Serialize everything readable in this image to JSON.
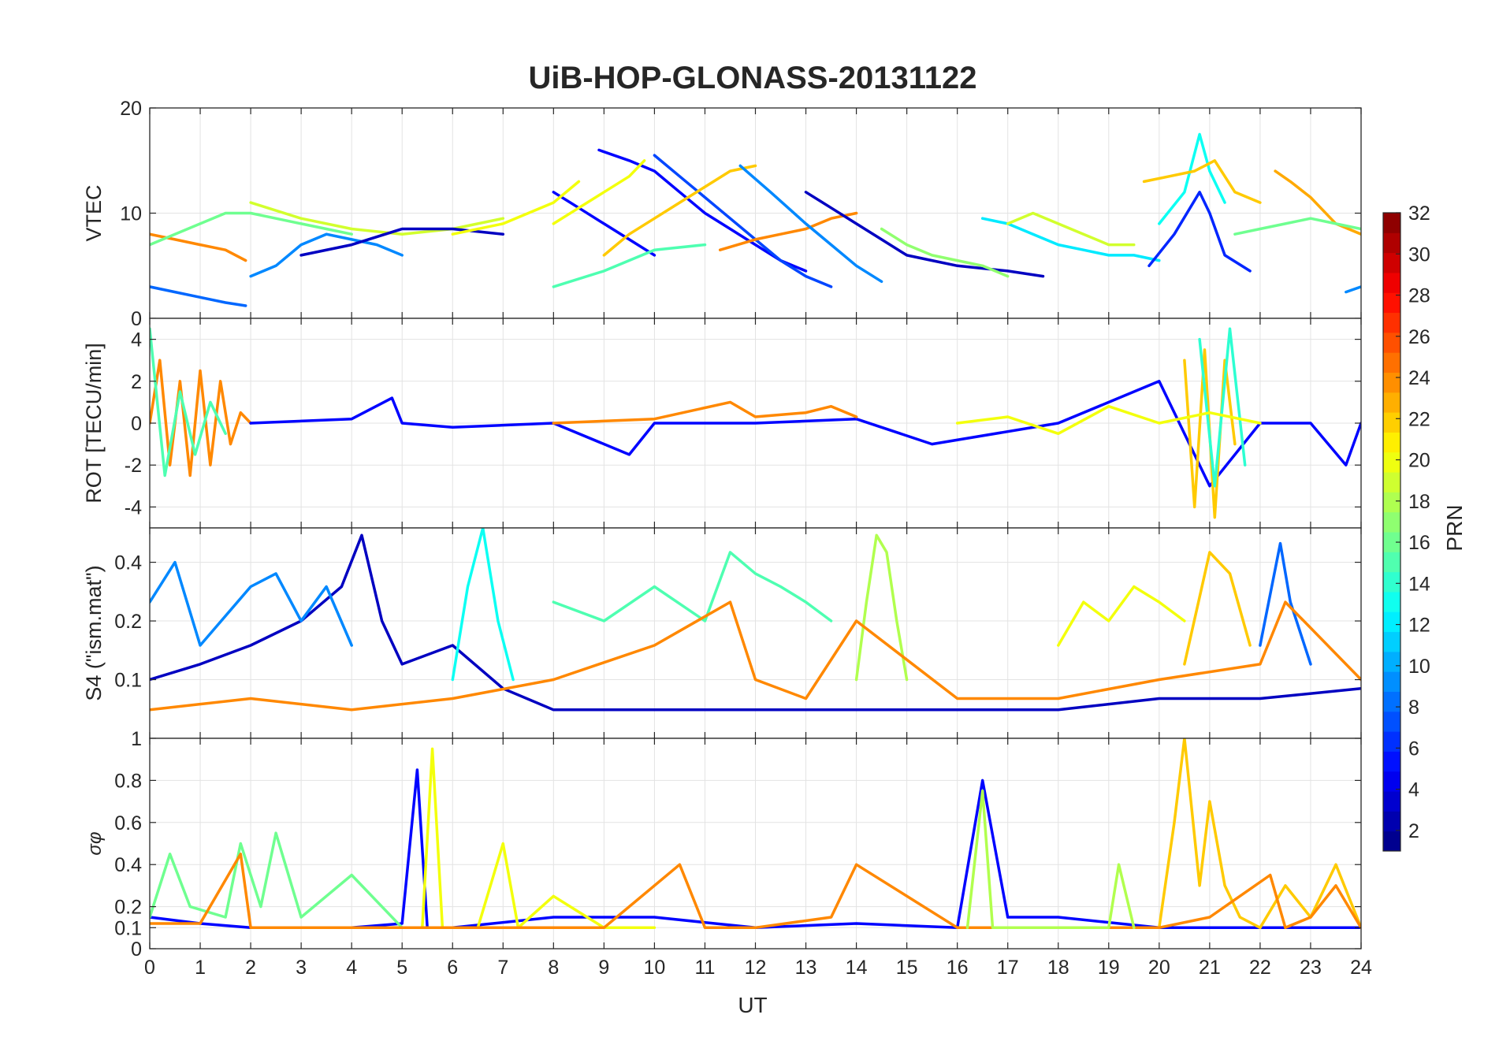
{
  "figure": {
    "title": "UiB-HOP-GLONASS-20131122",
    "xlabel": "UT"
  },
  "colorbar": {
    "label": "PRN",
    "range": [
      1,
      32
    ],
    "ticks": [
      2,
      4,
      6,
      8,
      10,
      12,
      14,
      16,
      18,
      20,
      22,
      24,
      26,
      28,
      30,
      32
    ],
    "colormap": "jet"
  },
  "chart_data": [
    {
      "type": "line",
      "panel": "vtec",
      "ylabel": "VTEC",
      "xlim": [
        0,
        24
      ],
      "ylim": [
        0,
        20
      ],
      "yticks": [
        0,
        10,
        20
      ],
      "xticks": [
        0,
        1,
        2,
        3,
        4,
        5,
        6,
        7,
        8,
        9,
        10,
        11,
        12,
        13,
        14,
        15,
        16,
        17,
        18,
        19,
        20,
        21,
        22,
        23,
        24
      ],
      "grid": true,
      "series": [
        {
          "prn": 24,
          "x": [
            0,
            0.5,
            1,
            1.5,
            1.9
          ],
          "y": [
            8,
            7.5,
            7,
            6.5,
            5.5
          ]
        },
        {
          "prn": 16,
          "x": [
            0,
            0.5,
            1,
            1.5,
            2,
            2.5,
            3,
            3.5,
            4
          ],
          "y": [
            7,
            8,
            9,
            10,
            10,
            9.5,
            9,
            8.5,
            8
          ]
        },
        {
          "prn": 8,
          "x": [
            0,
            0.5,
            1,
            1.5,
            1.9
          ],
          "y": [
            3,
            2.5,
            2,
            1.5,
            1.2
          ]
        },
        {
          "prn": 9,
          "x": [
            2,
            2.5,
            3,
            3.5,
            4,
            4.5,
            5
          ],
          "y": [
            4,
            5,
            7,
            8,
            7.5,
            7,
            6
          ]
        },
        {
          "prn": 19,
          "x": [
            2,
            3,
            4,
            5,
            6,
            7
          ],
          "y": [
            11,
            9.5,
            8.5,
            8,
            8.5,
            9.5
          ]
        },
        {
          "prn": 3,
          "x": [
            3,
            4,
            5,
            6,
            7
          ],
          "y": [
            6,
            7,
            8.5,
            8.5,
            8
          ]
        },
        {
          "prn": 5,
          "x": [
            8,
            8.5,
            9,
            9.5,
            10
          ],
          "y": [
            12,
            10.5,
            9,
            7.5,
            6
          ]
        },
        {
          "prn": 20,
          "x": [
            6,
            7,
            8,
            8.5
          ],
          "y": [
            8,
            9,
            11,
            13
          ]
        },
        {
          "prn": 5,
          "x": [
            8.9,
            9.5,
            10,
            10.5,
            11,
            11.5,
            12,
            12.5,
            13
          ],
          "y": [
            16,
            15,
            14,
            12,
            10,
            8.5,
            7,
            5.5,
            4.5
          ]
        },
        {
          "prn": 7,
          "x": [
            10,
            10.5,
            11,
            11.5,
            12,
            12.5,
            13,
            13.5
          ],
          "y": [
            15.5,
            13.5,
            11.5,
            9.5,
            7.5,
            5.5,
            4,
            3
          ]
        },
        {
          "prn": 20,
          "x": [
            8,
            8.5,
            9,
            9.5,
            9.8
          ],
          "y": [
            9,
            10.5,
            12,
            13.5,
            15
          ]
        },
        {
          "prn": 22,
          "x": [
            9,
            9.5,
            10,
            10.5,
            11,
            11.5,
            12
          ],
          "y": [
            6,
            8,
            9.5,
            11,
            12.5,
            14,
            14.5
          ]
        },
        {
          "prn": 15,
          "x": [
            8,
            9,
            10,
            11
          ],
          "y": [
            3,
            4.5,
            6.5,
            7
          ]
        },
        {
          "prn": 24,
          "x": [
            11.3,
            12,
            12.5,
            13,
            13.5,
            14
          ],
          "y": [
            6.5,
            7.5,
            8,
            8.5,
            9.5,
            10
          ]
        },
        {
          "prn": 9,
          "x": [
            11.7,
            12.3,
            13,
            13.5,
            14,
            14.5
          ],
          "y": [
            14.5,
            12,
            9,
            7,
            5,
            3.5
          ]
        },
        {
          "prn": 3,
          "x": [
            13,
            13.5,
            14,
            14.5,
            15,
            15.5,
            16,
            17,
            17.7
          ],
          "y": [
            12,
            10.5,
            9,
            7.5,
            6,
            5.5,
            5,
            4.5,
            4
          ]
        },
        {
          "prn": 12,
          "x": [
            16.5,
            17,
            17.5,
            18,
            18.5,
            19,
            19.5,
            20
          ],
          "y": [
            9.5,
            9,
            8,
            7,
            6.5,
            6,
            6,
            5.5
          ]
        },
        {
          "prn": 17,
          "x": [
            14.5,
            15,
            15.5,
            16,
            16.5,
            17
          ],
          "y": [
            8.5,
            7,
            6,
            5.5,
            5,
            4
          ]
        },
        {
          "prn": 19,
          "x": [
            17,
            17.5,
            18,
            18.5,
            19,
            19.5
          ],
          "y": [
            9,
            10,
            9,
            8,
            7,
            7
          ]
        },
        {
          "prn": 6,
          "x": [
            19.8,
            20.3,
            20.8,
            21,
            21.3,
            21.8
          ],
          "y": [
            5,
            8,
            12,
            10,
            6,
            4.5
          ]
        },
        {
          "prn": 13,
          "x": [
            20,
            20.5,
            20.8,
            21,
            21.3
          ],
          "y": [
            9,
            12,
            17.5,
            14,
            11
          ]
        },
        {
          "prn": 22,
          "x": [
            19.7,
            20.2,
            20.7,
            21.1,
            21.5,
            22
          ],
          "y": [
            13,
            13.5,
            14,
            15,
            12,
            11
          ]
        },
        {
          "prn": 23,
          "x": [
            22.3,
            22.6,
            23,
            23.5,
            24
          ],
          "y": [
            14,
            13,
            11.5,
            9,
            8
          ]
        },
        {
          "prn": 16,
          "x": [
            21.5,
            22,
            22.5,
            23,
            23.5,
            24
          ],
          "y": [
            8,
            8.5,
            9,
            9.5,
            9,
            8.5
          ]
        },
        {
          "prn": 9,
          "x": [
            23.7,
            24
          ],
          "y": [
            2.5,
            3
          ]
        }
      ]
    },
    {
      "type": "line",
      "panel": "rot",
      "ylabel": "ROT [TECU/min]",
      "xlim": [
        0,
        24
      ],
      "ylim": [
        -5,
        5
      ],
      "yticks": [
        -4,
        -2,
        0,
        2,
        4
      ],
      "grid": true,
      "series": [
        {
          "prn": 24,
          "x": [
            0,
            0.2,
            0.4,
            0.6,
            0.8,
            1,
            1.2,
            1.4,
            1.6,
            1.8,
            2
          ],
          "y": [
            0,
            3,
            -2,
            2,
            -2.5,
            2.5,
            -2,
            2,
            -1,
            0.5,
            0
          ]
        },
        {
          "prn": 15,
          "x": [
            0,
            0.3,
            0.6,
            0.9,
            1.2,
            1.5
          ],
          "y": [
            4.5,
            -2.5,
            1.5,
            -1.5,
            1,
            -0.5
          ]
        },
        {
          "prn": 5,
          "x": [
            2,
            4,
            4.8,
            5,
            6,
            8,
            9.5,
            10,
            12,
            14,
            15.5,
            18,
            20,
            21,
            22,
            23,
            23.7,
            24
          ],
          "y": [
            0,
            0.2,
            1.2,
            0,
            -0.2,
            0,
            -1.5,
            0,
            0,
            0.2,
            -1,
            0,
            2,
            -3,
            0,
            0,
            -2,
            0
          ]
        },
        {
          "prn": 22,
          "x": [
            20.5,
            20.7,
            20.9,
            21.1,
            21.3,
            21.5
          ],
          "y": [
            3,
            -4,
            3.5,
            -4.5,
            3,
            -1
          ]
        },
        {
          "prn": 14,
          "x": [
            20.8,
            21.1,
            21.4,
            21.7
          ],
          "y": [
            4,
            -3,
            4.5,
            -2
          ]
        },
        {
          "prn": 20,
          "x": [
            16,
            17,
            18,
            19,
            20,
            21,
            22
          ],
          "y": [
            0,
            0.3,
            -0.5,
            0.8,
            0,
            0.5,
            0
          ]
        },
        {
          "prn": 24,
          "x": [
            8,
            10,
            11.5,
            12,
            13,
            13.5,
            14
          ],
          "y": [
            0,
            0.2,
            1,
            0.3,
            0.5,
            0.8,
            0.3
          ]
        }
      ]
    },
    {
      "type": "line",
      "panel": "s4",
      "ylabel": "S4 (\"ism.mat\")",
      "xlim": [
        0,
        24
      ],
      "ylim": [
        0.05,
        0.6
      ],
      "yscale": "log",
      "yticks": [
        0.1,
        0.2,
        0.4
      ],
      "grid": true,
      "series": [
        {
          "prn": 3,
          "x": [
            0,
            1,
            2,
            3,
            3.8,
            4.2,
            4.6,
            5,
            6,
            7,
            8,
            10,
            12,
            14,
            16,
            18,
            20,
            22,
            24
          ],
          "y": [
            0.1,
            0.12,
            0.15,
            0.2,
            0.3,
            0.55,
            0.2,
            0.12,
            0.15,
            0.09,
            0.07,
            0.07,
            0.07,
            0.07,
            0.07,
            0.07,
            0.08,
            0.08,
            0.09
          ]
        },
        {
          "prn": 9,
          "x": [
            0,
            0.5,
            1,
            2,
            2.5,
            3,
            3.5,
            4
          ],
          "y": [
            0.25,
            0.4,
            0.15,
            0.3,
            0.35,
            0.2,
            0.3,
            0.15
          ]
        },
        {
          "prn": 13,
          "x": [
            6,
            6.3,
            6.6,
            6.9,
            7.2
          ],
          "y": [
            0.1,
            0.3,
            0.6,
            0.2,
            0.1
          ]
        },
        {
          "prn": 15,
          "x": [
            8,
            9,
            10,
            11,
            11.5,
            12,
            12.5,
            13,
            13.5
          ],
          "y": [
            0.25,
            0.2,
            0.3,
            0.2,
            0.45,
            0.35,
            0.3,
            0.25,
            0.2
          ]
        },
        {
          "prn": 18,
          "x": [
            14,
            14.2,
            14.4,
            14.6,
            14.8,
            15
          ],
          "y": [
            0.1,
            0.25,
            0.55,
            0.45,
            0.2,
            0.1
          ]
        },
        {
          "prn": 20,
          "x": [
            18,
            18.5,
            19,
            19.5,
            20,
            20.5
          ],
          "y": [
            0.15,
            0.25,
            0.2,
            0.3,
            0.25,
            0.2
          ]
        },
        {
          "prn": 22,
          "x": [
            20.5,
            21,
            21.4,
            21.8
          ],
          "y": [
            0.12,
            0.45,
            0.35,
            0.15
          ]
        },
        {
          "prn": 8,
          "x": [
            22,
            22.4,
            22.6,
            23
          ],
          "y": [
            0.15,
            0.5,
            0.25,
            0.12
          ]
        },
        {
          "prn": 24,
          "x": [
            0,
            2,
            4,
            6,
            8,
            10,
            11.5,
            12,
            13,
            14,
            16,
            18,
            20,
            22,
            22.5,
            24
          ],
          "y": [
            0.07,
            0.08,
            0.07,
            0.08,
            0.1,
            0.15,
            0.25,
            0.1,
            0.08,
            0.2,
            0.08,
            0.08,
            0.1,
            0.12,
            0.25,
            0.1
          ]
        }
      ]
    },
    {
      "type": "line",
      "panel": "sigma_phi",
      "ylabel": "σφ",
      "xlim": [
        0,
        24
      ],
      "ylim": [
        0,
        1
      ],
      "yticks": [
        0,
        0.1,
        0.2,
        0.4,
        0.6,
        0.8,
        1
      ],
      "grid": true,
      "series": [
        {
          "prn": 5,
          "x": [
            0,
            1,
            2,
            3,
            4,
            5,
            5.3,
            5.5,
            6,
            8,
            10,
            12,
            14,
            16,
            16.5,
            17,
            18,
            20,
            22,
            24
          ],
          "y": [
            0.15,
            0.12,
            0.1,
            0.1,
            0.1,
            0.12,
            0.85,
            0.1,
            0.1,
            0.15,
            0.15,
            0.1,
            0.12,
            0.1,
            0.8,
            0.15,
            0.15,
            0.1,
            0.1,
            0.1
          ]
        },
        {
          "prn": 16,
          "x": [
            0,
            0.4,
            0.8,
            1.5,
            1.8,
            2.2,
            2.5,
            3,
            4,
            5
          ],
          "y": [
            0.15,
            0.45,
            0.2,
            0.15,
            0.5,
            0.2,
            0.55,
            0.15,
            0.35,
            0.1
          ]
        },
        {
          "prn": 20,
          "x": [
            5.4,
            5.6,
            5.8,
            6.5,
            7,
            7.3,
            8,
            9,
            10
          ],
          "y": [
            0.1,
            0.95,
            0.1,
            0.1,
            0.5,
            0.1,
            0.25,
            0.1,
            0.1
          ]
        },
        {
          "prn": 22,
          "x": [
            20,
            20.3,
            20.5,
            20.8,
            21,
            21.3,
            21.6,
            22,
            22.5,
            23,
            23.5,
            24
          ],
          "y": [
            0.1,
            0.6,
            1,
            0.3,
            0.7,
            0.3,
            0.15,
            0.1,
            0.3,
            0.15,
            0.4,
            0.1
          ]
        },
        {
          "prn": 24,
          "x": [
            0,
            1,
            1.8,
            2,
            3,
            6,
            9,
            10.5,
            11,
            12,
            13.5,
            14,
            16,
            19,
            20,
            21,
            22.2,
            22.5,
            23,
            23.5,
            24
          ],
          "y": [
            0.12,
            0.12,
            0.45,
            0.1,
            0.1,
            0.1,
            0.1,
            0.4,
            0.1,
            0.1,
            0.15,
            0.4,
            0.1,
            0.1,
            0.1,
            0.15,
            0.35,
            0.1,
            0.15,
            0.3,
            0.1
          ]
        },
        {
          "prn": 18,
          "x": [
            16.2,
            16.5,
            16.7,
            19,
            19.2,
            19.5
          ],
          "y": [
            0.1,
            0.75,
            0.1,
            0.1,
            0.4,
            0.1
          ]
        }
      ]
    }
  ]
}
